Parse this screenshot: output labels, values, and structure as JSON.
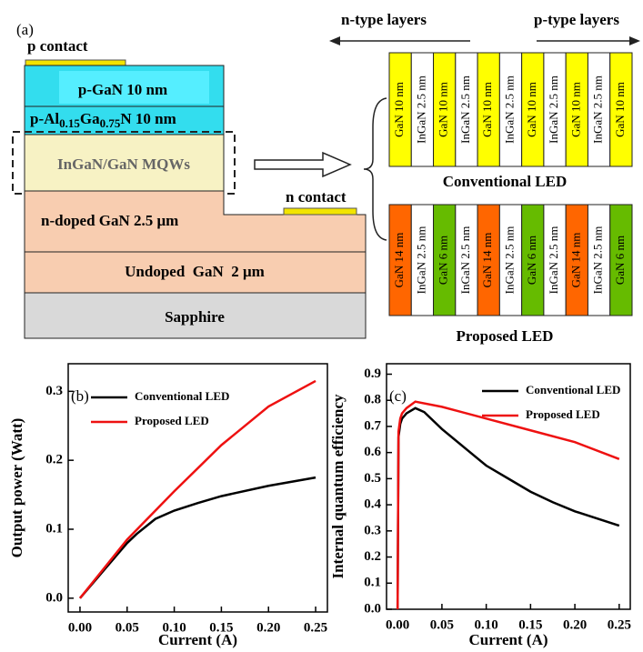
{
  "panel_a": {
    "label": "(a)",
    "p_contact": "p contact",
    "n_contact": "n contact",
    "p_gan": "p-GaN 10 nm",
    "p_algan": [
      "p-Al",
      "0.15",
      "Ga",
      "0.75",
      "N 10 nm"
    ],
    "mqw": "InGaN/GaN MQWs",
    "n_gan": "n-doped GaN 2.5 μm",
    "undoped": "Undoped  GaN  2 μm",
    "sapphire": "Sapphire",
    "n_type": "n-type layers",
    "p_type": "p-type layers",
    "conventional": {
      "label": "Conventional LED",
      "layers": [
        {
          "text": "GaN 10 nm",
          "color": "#ffff00"
        },
        {
          "text": "InGaN 2.5 nm",
          "color": "#ffffff"
        },
        {
          "text": "GaN 10 nm",
          "color": "#ffff00"
        },
        {
          "text": "InGaN 2.5 nm",
          "color": "#ffffff"
        },
        {
          "text": "GaN 10 nm",
          "color": "#ffff00"
        },
        {
          "text": "InGaN 2.5 nm",
          "color": "#ffffff"
        },
        {
          "text": "GaN 10 nm",
          "color": "#ffff00"
        },
        {
          "text": "InGaN 2.5 nm",
          "color": "#ffffff"
        },
        {
          "text": "GaN 10 nm",
          "color": "#ffff00"
        },
        {
          "text": "InGaN 2.5 nm",
          "color": "#ffffff"
        },
        {
          "text": "GaN 10 nm",
          "color": "#ffff00"
        }
      ]
    },
    "proposed": {
      "label": "Proposed LED",
      "layers": [
        {
          "text": "GaN 14 nm",
          "color": "#ff6600"
        },
        {
          "text": "InGaN 2.5 nm",
          "color": "#ffffff"
        },
        {
          "text": "GaN 6 nm",
          "color": "#66bb00"
        },
        {
          "text": "InGaN 2.5 nm",
          "color": "#ffffff"
        },
        {
          "text": "GaN 14 nm",
          "color": "#ff6600"
        },
        {
          "text": "InGaN 2.5 nm",
          "color": "#ffffff"
        },
        {
          "text": "GaN 6 nm",
          "color": "#66bb00"
        },
        {
          "text": "InGaN 2.5 nm",
          "color": "#ffffff"
        },
        {
          "text": "GaN 14 nm",
          "color": "#ff6600"
        },
        {
          "text": "InGaN 2.5 nm",
          "color": "#ffffff"
        },
        {
          "text": "GaN 6 nm",
          "color": "#66bb00"
        }
      ]
    }
  },
  "chart_data": [
    {
      "type": "line",
      "label": "(b)",
      "xlabel": "Current (A)",
      "ylabel": "Output power (Watt)",
      "xlim": [
        -0.0125,
        0.2625
      ],
      "ylim": [
        -0.02,
        0.34
      ],
      "xticks": [
        {
          "value": 0,
          "label": "0.00"
        },
        {
          "value": 0.05,
          "label": "0.05"
        },
        {
          "value": 0.1,
          "label": "0.10"
        },
        {
          "value": 0.15,
          "label": "0.15"
        },
        {
          "value": 0.2,
          "label": "0.20"
        },
        {
          "value": 0.25,
          "label": "0.25"
        }
      ],
      "yticks": [
        {
          "value": 0,
          "label": "0.0"
        },
        0.1,
        0.2,
        0.3
      ],
      "series": [
        {
          "name": "Conventional LED",
          "color": "#000000",
          "x": [
            0,
            0.025,
            0.05,
            0.06,
            0.08,
            0.1,
            0.125,
            0.15,
            0.2,
            0.25
          ],
          "values": [
            0,
            0.04,
            0.08,
            0.093,
            0.115,
            0.127,
            0.138,
            0.148,
            0.163,
            0.175
          ]
        },
        {
          "name": "Proposed LED",
          "color": "#ee1111",
          "x": [
            0,
            0.05,
            0.1,
            0.15,
            0.2,
            0.25
          ],
          "values": [
            0,
            0.085,
            0.155,
            0.222,
            0.278,
            0.315
          ]
        }
      ]
    },
    {
      "type": "line",
      "label": "(c)",
      "xlabel": "Current (A)",
      "ylabel": "Internal quantum efficiency",
      "xlim": [
        -0.0125,
        0.2625
      ],
      "ylim": [
        0,
        0.94
      ],
      "xticks": [
        {
          "value": 0,
          "label": "0.00"
        },
        {
          "value": 0.05,
          "label": "0.05"
        },
        {
          "value": 0.1,
          "label": "0.10"
        },
        {
          "value": 0.15,
          "label": "0.15"
        },
        {
          "value": 0.2,
          "label": "0.20"
        },
        {
          "value": 0.25,
          "label": "0.25"
        }
      ],
      "yticks": [
        {
          "value": 0,
          "label": "0.0"
        },
        0.1,
        0.2,
        0.3,
        0.4,
        0.5,
        0.6,
        0.7,
        0.8,
        0.9
      ],
      "series": [
        {
          "name": "Conventional LED",
          "color": "#000000",
          "x": [
            0,
            0.001,
            0.003,
            0.005,
            0.01,
            0.02,
            0.03,
            0.05,
            0.075,
            0.1,
            0.125,
            0.15,
            0.175,
            0.2,
            0.25
          ],
          "values": [
            0,
            0.66,
            0.71,
            0.73,
            0.75,
            0.77,
            0.755,
            0.69,
            0.62,
            0.55,
            0.5,
            0.45,
            0.41,
            0.375,
            0.32
          ]
        },
        {
          "name": "Proposed LED",
          "color": "#ee1111",
          "x": [
            0,
            0.001,
            0.003,
            0.005,
            0.01,
            0.02,
            0.05,
            0.1,
            0.15,
            0.2,
            0.25
          ],
          "values": [
            0,
            0.68,
            0.73,
            0.75,
            0.77,
            0.795,
            0.775,
            0.73,
            0.685,
            0.64,
            0.575
          ]
        }
      ]
    }
  ]
}
